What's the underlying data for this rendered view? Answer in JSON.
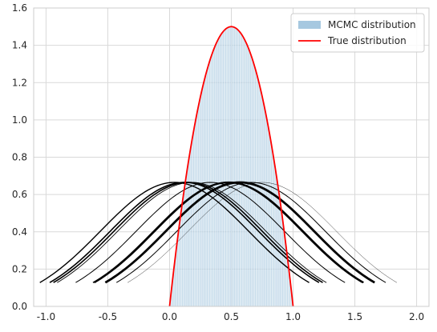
{
  "chart_data": {
    "type": "area",
    "xlim": [
      -1.1,
      2.1
    ],
    "ylim": [
      0.0,
      1.6
    ],
    "x_ticks": [
      "-1.0",
      "-0.5",
      "0.0",
      "0.5",
      "1.0",
      "1.5",
      "2.0"
    ],
    "y_ticks": [
      "0.0",
      "0.2",
      "0.4",
      "0.6",
      "0.8",
      "1.0",
      "1.2",
      "1.4",
      "1.6"
    ],
    "grid": true,
    "legend_position": "top-right",
    "series": [
      {
        "name": "MCMC distribution",
        "kind": "histogram",
        "color": "#a6c8e0",
        "x_range": [
          0.0,
          1.0
        ],
        "bins": 100,
        "density_function": "6*x*(1-x)"
      },
      {
        "name": "True distribution",
        "kind": "line",
        "color": "#ff0000",
        "x": [
          0.0,
          0.05,
          0.1,
          0.15,
          0.2,
          0.25,
          0.3,
          0.35,
          0.4,
          0.45,
          0.5,
          0.55,
          0.6,
          0.65,
          0.7,
          0.75,
          0.8,
          0.85,
          0.9,
          0.95,
          1.0
        ],
        "y": [
          0.0,
          0.285,
          0.54,
          0.765,
          0.96,
          1.125,
          1.26,
          1.365,
          1.44,
          1.485,
          1.5,
          1.485,
          1.44,
          1.365,
          1.26,
          1.125,
          0.96,
          0.765,
          0.54,
          0.285,
          0.0
        ]
      }
    ],
    "proposal_curves": {
      "color": "#000000",
      "peak": 0.665,
      "sigma": 0.6,
      "half_width": 1.09,
      "centers": [
        0.12,
        0.04,
        0.18,
        0.48,
        0.57,
        0.15,
        0.33,
        0.47,
        0.66,
        0.75
      ],
      "widths": [
        1.6,
        1.4,
        0.9,
        2.2,
        2.8,
        1.6,
        1.0,
        1.4,
        1.0,
        0.4
      ]
    }
  }
}
